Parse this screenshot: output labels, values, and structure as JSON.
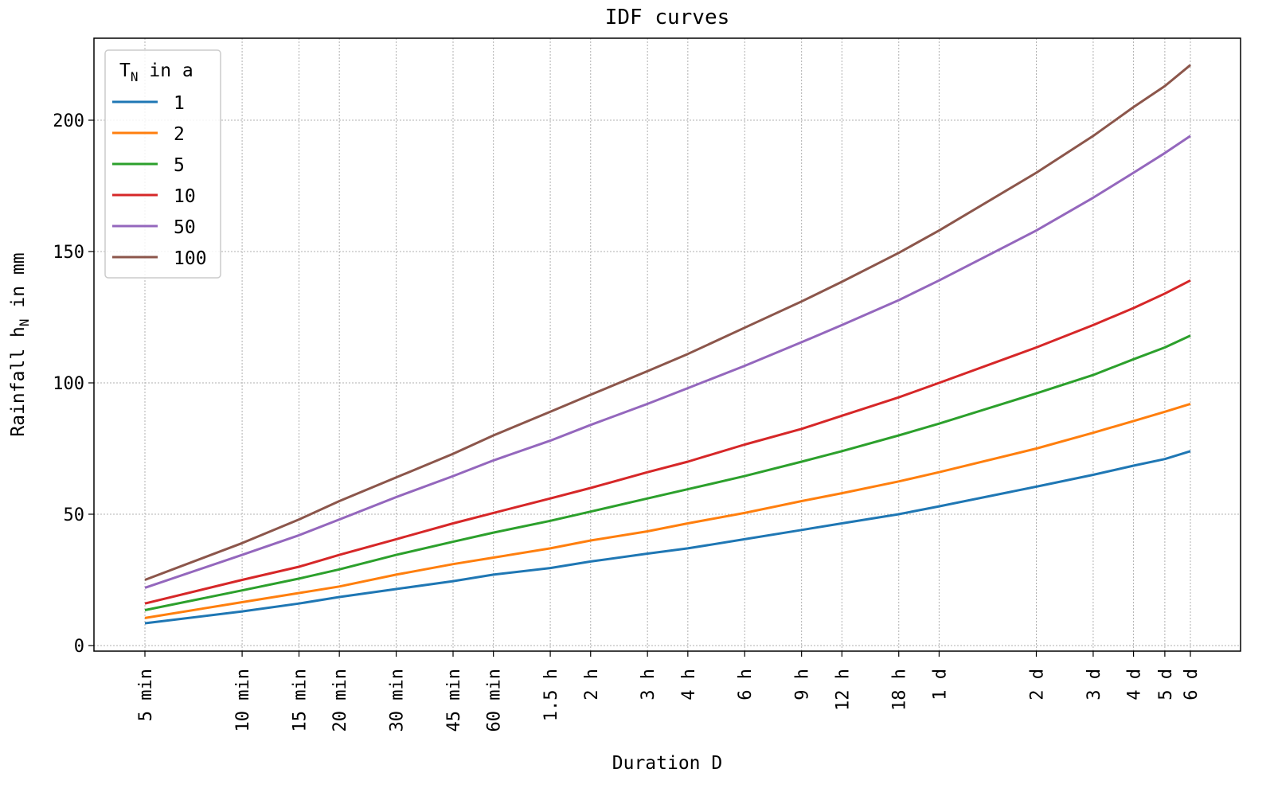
{
  "chart_data": {
    "type": "line",
    "title": "IDF curves",
    "xlabel": "Duration D",
    "ylabel": "Rainfall h_N in mm",
    "ylabel_main": "Rainfall h",
    "ylabel_sub": "N",
    "ylabel_tail": " in mm",
    "x_scale": "log",
    "x_unit": "min",
    "x": [
      5,
      10,
      15,
      20,
      30,
      45,
      60,
      90,
      120,
      180,
      240,
      360,
      540,
      720,
      1080,
      1440,
      2880,
      4320,
      5760,
      7200,
      8640
    ],
    "x_tick_labels": [
      "5 min",
      "10 min",
      "15 min",
      "20 min",
      "30 min",
      "45 min",
      "60 min",
      "1.5 h",
      "2 h",
      "3 h",
      "4 h",
      "6 h",
      "9 h",
      "12 h",
      "18 h",
      "1 d",
      "2 d",
      "3 d",
      "4 d",
      "5 d",
      "6 d"
    ],
    "ylim": [
      -2,
      233
    ],
    "y_ticks": [
      0,
      50,
      100,
      150,
      200
    ],
    "grid": true,
    "legend": {
      "placement": "top-left",
      "title_main": "T",
      "title_sub": "N",
      "title_tail": " in a"
    },
    "series": [
      {
        "name": "1",
        "color": "#1f77b4",
        "values": [
          8.5,
          13,
          16,
          18.5,
          21.5,
          24.5,
          27,
          29.5,
          32,
          35,
          37,
          40.5,
          44,
          46.5,
          50,
          53,
          60.5,
          65,
          68.5,
          71,
          74
        ]
      },
      {
        "name": "2",
        "color": "#ff7f0e",
        "values": [
          10.5,
          16.5,
          20,
          22.5,
          27,
          31,
          33.5,
          37,
          40,
          43.5,
          46.5,
          50.5,
          55,
          58,
          62.5,
          66,
          75,
          81,
          85.5,
          89,
          92
        ]
      },
      {
        "name": "5",
        "color": "#2ca02c",
        "values": [
          13.5,
          21,
          25.5,
          29,
          34.5,
          39.5,
          43,
          47.5,
          51,
          56,
          59.5,
          64.5,
          70,
          74,
          80,
          84.5,
          96,
          103,
          109,
          113.5,
          118
        ]
      },
      {
        "name": "10",
        "color": "#d62728",
        "values": [
          16,
          25,
          30,
          34.5,
          40.5,
          46.5,
          50.5,
          56,
          60,
          66,
          70,
          76.5,
          82.5,
          87.5,
          94.5,
          100,
          113.5,
          122,
          128.5,
          134,
          139
        ]
      },
      {
        "name": "50",
        "color": "#9467bd",
        "values": [
          22,
          34.5,
          42,
          48,
          56.5,
          64.5,
          70.5,
          78,
          84,
          92,
          98,
          106.5,
          115.5,
          122,
          131.5,
          139,
          158,
          170.5,
          180,
          187.5,
          194
        ]
      },
      {
        "name": "100",
        "color": "#8c564b",
        "values": [
          25,
          39,
          48,
          55,
          64,
          73,
          80,
          89,
          95.5,
          104.5,
          111,
          121,
          131,
          138.5,
          149.5,
          158,
          180,
          194,
          205,
          213,
          221
        ]
      }
    ]
  }
}
